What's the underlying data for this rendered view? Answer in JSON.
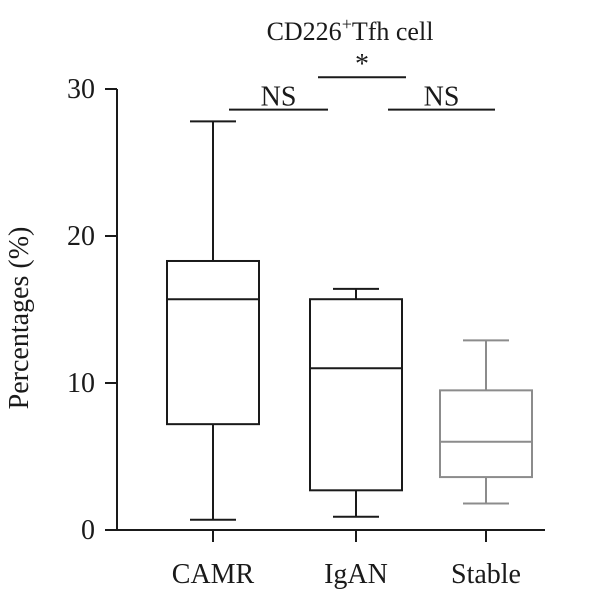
{
  "chart_data": {
    "type": "box",
    "title_main": "CD226",
    "title_sup": "+",
    "title_rest": "Tfh cell",
    "ylabel": "Percentages (%)",
    "xlabel": "",
    "ylim": [
      0,
      30
    ],
    "yticks": [
      "0",
      "10",
      "20",
      "30"
    ],
    "grid": false,
    "categories": [
      "CAMR",
      "IgAN",
      "Stable"
    ],
    "boxes": [
      {
        "name": "CAMR",
        "min": 0.7,
        "q1": 7.2,
        "median": 15.7,
        "q3": 18.3,
        "max": 27.8,
        "color": "#1a1a1a"
      },
      {
        "name": "IgAN",
        "min": 0.9,
        "q1": 2.7,
        "median": 11.0,
        "q3": 15.7,
        "max": 16.4,
        "color": "#1a1a1a"
      },
      {
        "name": "Stable",
        "min": 1.8,
        "q1": 3.6,
        "median": 6.0,
        "q3": 9.5,
        "max": 12.9,
        "color": "#8c8c8c"
      }
    ],
    "comparisons": [
      {
        "from": "CAMR",
        "to": "IgAN",
        "label": "NS",
        "y": 28.6
      },
      {
        "from": "IgAN",
        "to": "Stable",
        "label": "NS",
        "y": 28.6
      },
      {
        "from": "CAMR",
        "to": "Stable",
        "label": "*",
        "y": 30.8
      }
    ]
  }
}
